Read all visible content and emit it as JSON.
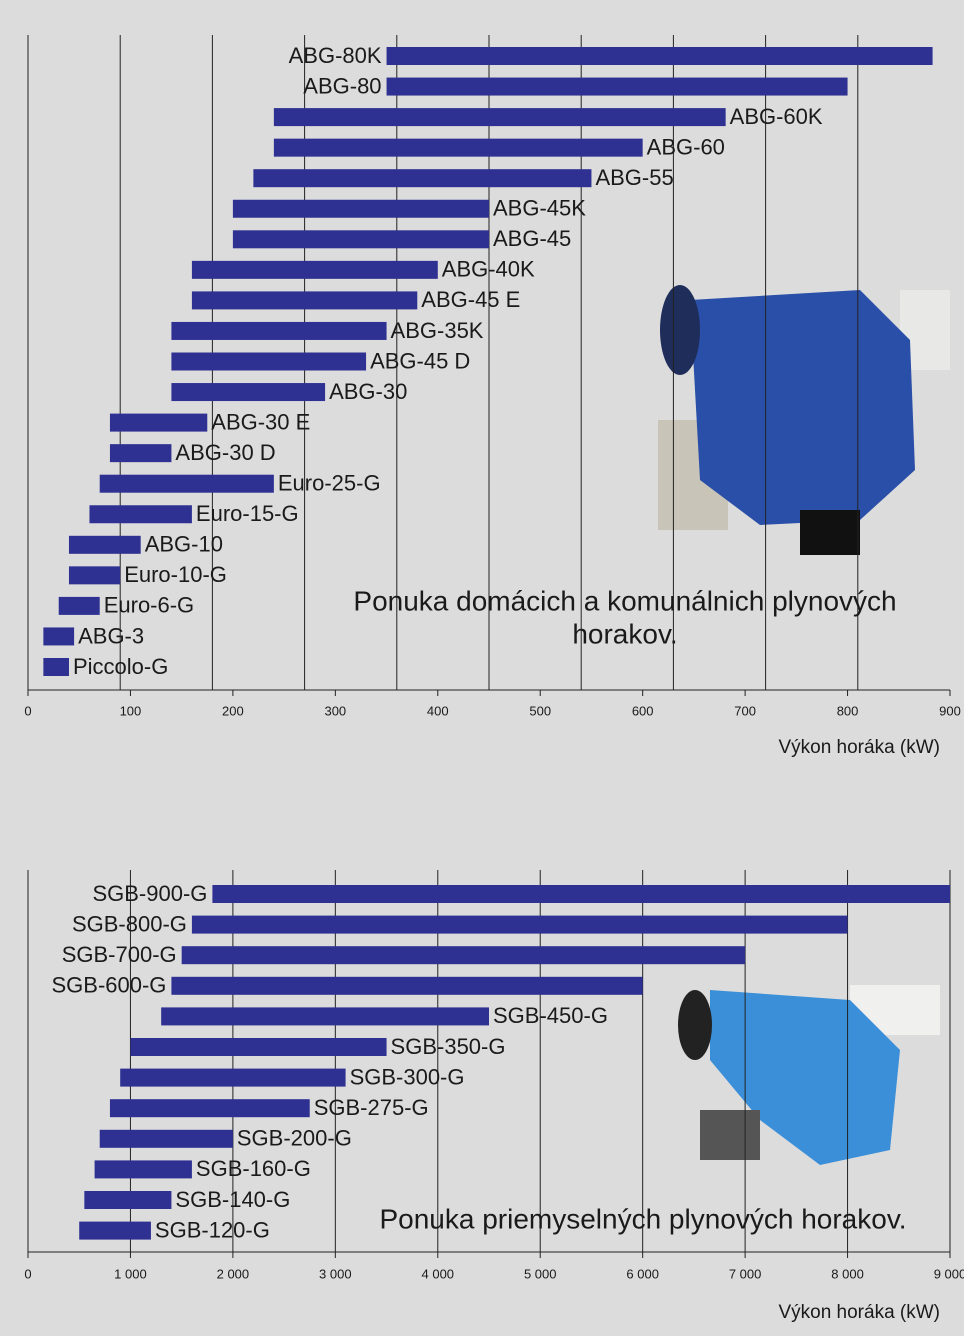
{
  "chart_data": [
    {
      "type": "range-bar",
      "categories": [
        "ABG-80K",
        "ABG-80",
        "ABG-60K",
        "ABG-60",
        "ABG-55",
        "ABG-45K",
        "ABG-45",
        "ABG-40K",
        "ABG-45 E",
        "ABG-35K",
        "ABG-45 D",
        "ABG-30",
        "ABG-30 E",
        "ABG-30 D",
        "Euro-25-G",
        "Euro-15-G",
        "ABG-10",
        "Euro-10-G",
        "Euro-6-G",
        "ABG-3",
        "Piccolo-G"
      ],
      "low": [
        350,
        350,
        240,
        240,
        220,
        200,
        200,
        160,
        160,
        140,
        140,
        140,
        80,
        80,
        70,
        60,
        40,
        40,
        30,
        15,
        15
      ],
      "high": [
        883,
        800,
        681,
        600,
        550,
        450,
        450,
        400,
        380,
        350,
        330,
        290,
        175,
        140,
        240,
        160,
        110,
        90,
        70,
        45,
        40
      ],
      "color": "#2e3192",
      "xlim": [
        0,
        900
      ],
      "xticks": [
        0,
        100,
        200,
        300,
        400,
        500,
        600,
        700,
        800,
        900
      ],
      "grid": true,
      "grid_lines": [
        90,
        180,
        270,
        360,
        450,
        540,
        630,
        720,
        810
      ],
      "xlabel": "Výkon horáka (kW)",
      "annotation": [
        "Ponuka domácich a komunálnich plynových",
        "horakov."
      ]
    },
    {
      "type": "range-bar",
      "categories": [
        "SGB-900-G",
        "SGB-800-G",
        "SGB-700-G",
        "SGB-600-G",
        "SGB-450-G",
        "SGB-350-G",
        "SGB-300-G",
        "SGB-275-G",
        "SGB-200-G",
        "SGB-160-G",
        "SGB-140-G",
        "SGB-120-G"
      ],
      "low": [
        1800,
        1600,
        1500,
        1400,
        1300,
        1000,
        900,
        800,
        700,
        650,
        550,
        500
      ],
      "high": [
        9000,
        8000,
        7000,
        6000,
        4500,
        3500,
        3100,
        2750,
        2000,
        1600,
        1400,
        1200
      ],
      "color": "#2e3192",
      "xlim": [
        0,
        9000
      ],
      "xticks": [
        0,
        {
          "value": 1000,
          "label": "1 000"
        },
        {
          "value": 2000,
          "label": "2 000"
        },
        {
          "value": 3000,
          "label": "3 000"
        },
        {
          "value": 4000,
          "label": "4 000"
        },
        {
          "value": 5000,
          "label": "5 000"
        },
        {
          "value": 6000,
          "label": "6 000"
        },
        {
          "value": 7000,
          "label": "7 000"
        },
        {
          "value": 8000,
          "label": "8 000"
        },
        {
          "value": 9000,
          "label": "9 000"
        }
      ],
      "grid": true,
      "xlabel": "Výkon horáka (kW)",
      "annotation": [
        "Ponuka priemyselných plynových horakov."
      ]
    }
  ]
}
